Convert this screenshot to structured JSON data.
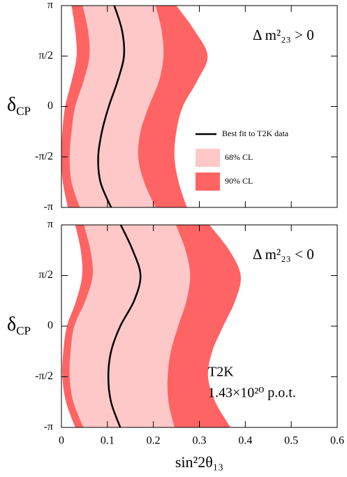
{
  "chart_data": [
    {
      "type": "band",
      "annotation": "Δ m²₂₃ > 0",
      "ylabel": {
        "symbol": "δ",
        "subscript": "CP"
      },
      "xlim": [
        0,
        0.6
      ],
      "xticks": [
        0,
        0.1,
        0.2,
        0.3,
        0.4,
        0.5,
        0.6
      ],
      "xtick_labels": false,
      "ylim": [
        -3.1416,
        3.1416
      ],
      "yticks": [
        {
          "value": -3.1416,
          "label": "-π"
        },
        {
          "value": -1.5708,
          "label": "-π/2"
        },
        0,
        {
          "value": 1.5708,
          "label": "π/2"
        },
        {
          "value": 3.1416,
          "label": "π"
        }
      ],
      "delta": [
        -3.1416,
        -2.3562,
        -1.5708,
        -0.7854,
        0,
        0.7854,
        1.5708,
        2.3562,
        3.1416
      ],
      "legend": true,
      "series": [
        {
          "name": "Best fit to T2K data",
          "color": "#000000",
          "values": [
            0.108,
            0.085,
            0.08,
            0.088,
            0.103,
            0.122,
            0.136,
            0.132,
            0.115
          ]
        },
        {
          "name": "68% CL",
          "color": "#ffc8c8",
          "lower": [
            0.04,
            0.022,
            0.018,
            0.022,
            0.03,
            0.048,
            0.061,
            0.058,
            0.046
          ],
          "upper": [
            0.205,
            0.18,
            0.167,
            0.172,
            0.19,
            0.212,
            0.222,
            0.218,
            0.205
          ]
        },
        {
          "name": "90% CL",
          "color": "#ff6464",
          "lower": [
            0.014,
            0.003,
            0.0,
            0.002,
            0.008,
            0.022,
            0.033,
            0.03,
            0.022
          ],
          "upper": [
            0.273,
            0.255,
            0.246,
            0.25,
            0.264,
            0.295,
            0.318,
            0.29,
            0.25
          ]
        }
      ]
    },
    {
      "type": "band",
      "annotation": "Δ m²₂₃ < 0",
      "notes": [
        "T2K",
        "1.43×10²⁰ p.o.t."
      ],
      "ylabel": {
        "symbol": "δ",
        "subscript": "CP"
      },
      "xlabel": "sin²2θ₁₃",
      "xlim": [
        0,
        0.6
      ],
      "xticks": [
        0,
        0.1,
        0.2,
        0.3,
        0.4,
        0.5,
        0.6
      ],
      "xtick_labels": true,
      "ylim": [
        -3.1416,
        3.1416
      ],
      "yticks": [
        {
          "value": -3.1416,
          "label": "-π"
        },
        {
          "value": -1.5708,
          "label": "-π/2"
        },
        0,
        {
          "value": 1.5708,
          "label": "π/2"
        },
        {
          "value": 3.1416,
          "label": "π"
        }
      ],
      "delta": [
        -3.1416,
        -2.3562,
        -1.5708,
        -0.7854,
        0,
        0.7854,
        1.5708,
        2.3562,
        3.1416
      ],
      "legend": false,
      "series": [
        {
          "color": "#000000",
          "values": [
            0.128,
            0.108,
            0.102,
            0.108,
            0.128,
            0.158,
            0.172,
            0.155,
            0.129
          ]
        },
        {
          "color": "#ffc8c8",
          "lower": [
            0.048,
            0.026,
            0.018,
            0.02,
            0.028,
            0.052,
            0.068,
            0.063,
            0.049
          ],
          "upper": [
            0.246,
            0.233,
            0.231,
            0.238,
            0.254,
            0.272,
            0.28,
            0.27,
            0.249
          ]
        },
        {
          "color": "#ff6464",
          "lower": [
            0.03,
            0.01,
            0.002,
            0.004,
            0.012,
            0.032,
            0.045,
            0.042,
            0.03
          ],
          "upper": [
            0.368,
            0.335,
            0.319,
            0.328,
            0.352,
            0.378,
            0.39,
            0.365,
            0.322
          ]
        }
      ]
    }
  ]
}
